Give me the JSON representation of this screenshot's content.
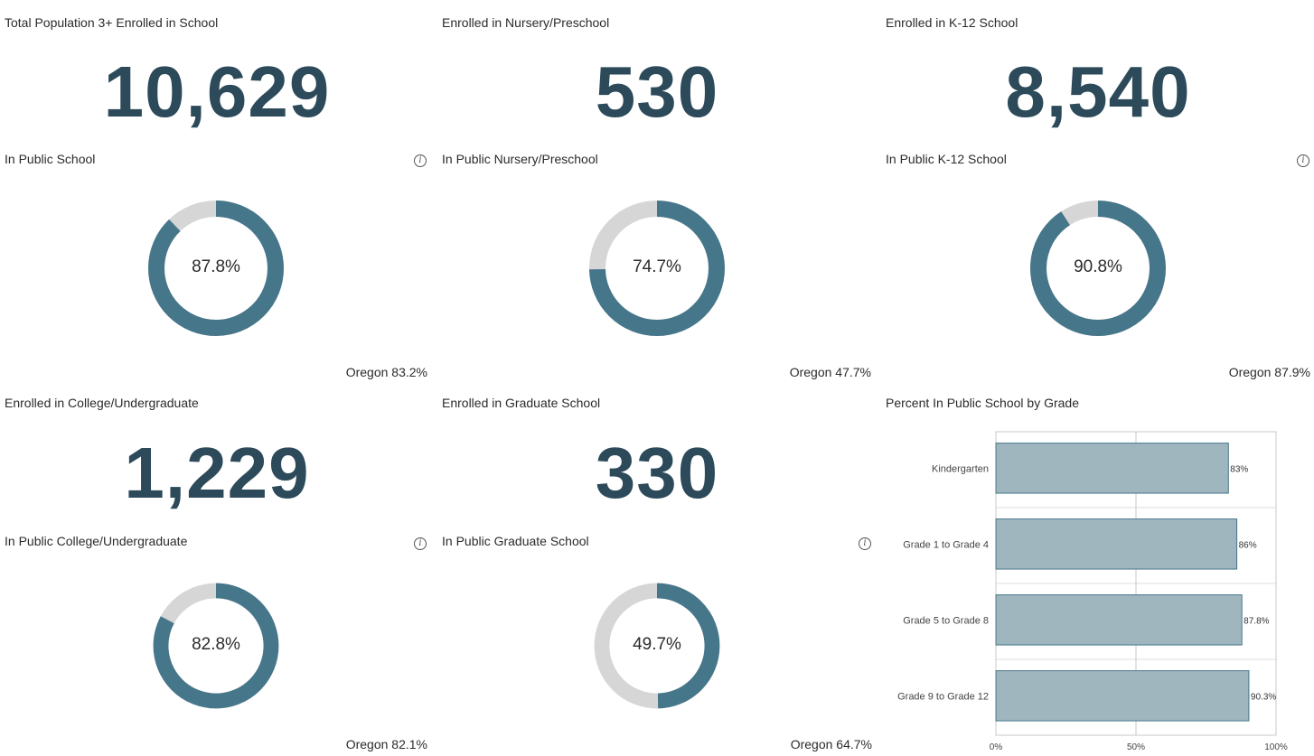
{
  "panels": [
    {
      "title": "Total Population 3+ Enrolled in School",
      "value": "10,629"
    },
    {
      "title": "Enrolled in Nursery/Preschool",
      "value": "530"
    },
    {
      "title": "Enrolled in K-12 School",
      "value": "8,540"
    },
    {
      "title": "Enrolled in College/Undergraduate",
      "value": "1,229"
    },
    {
      "title": "Enrolled in Graduate School",
      "value": "330"
    }
  ],
  "donuts": [
    {
      "title": "In Public School",
      "percent": 87.8,
      "label": "87.8%",
      "oregon": "Oregon 83.2%",
      "info_icon": "info-icon"
    },
    {
      "title": "In Public Nursery/Preschool",
      "percent": 74.7,
      "label": "74.7%",
      "oregon": "Oregon 47.7%"
    },
    {
      "title": "In Public K-12 School",
      "percent": 90.8,
      "label": "90.8%",
      "oregon": "Oregon 87.9%",
      "info_icon": "info-icon"
    },
    {
      "title": "In Public College/Undergraduate",
      "percent": 82.8,
      "label": "82.8%",
      "oregon": "Oregon 82.1%",
      "info_icon": "info-icon"
    },
    {
      "title": "In Public Graduate School",
      "percent": 49.7,
      "label": "49.7%",
      "oregon": "Oregon 64.7%",
      "info_icon": "info-icon"
    }
  ],
  "colors": {
    "accent": "#46768a",
    "track": "#d6d6d6",
    "big_number": "#2c4a5a",
    "bar_fill": "#a0b6be",
    "bar_stroke": "#46768a"
  },
  "chart_data": {
    "type": "bar",
    "orientation": "horizontal",
    "title": "Percent In Public School by Grade",
    "categories": [
      "Kindergarten",
      "Grade 1 to Grade 4",
      "Grade 5 to Grade 8",
      "Grade 9 to Grade 12"
    ],
    "values": [
      83,
      86,
      87.8,
      90.3
    ],
    "value_labels": [
      "83%",
      "86%",
      "87.8%",
      "90.3%"
    ],
    "xlim": [
      0,
      100
    ],
    "x_ticks": [
      "0%",
      "50%",
      "100%"
    ],
    "grid": true
  }
}
